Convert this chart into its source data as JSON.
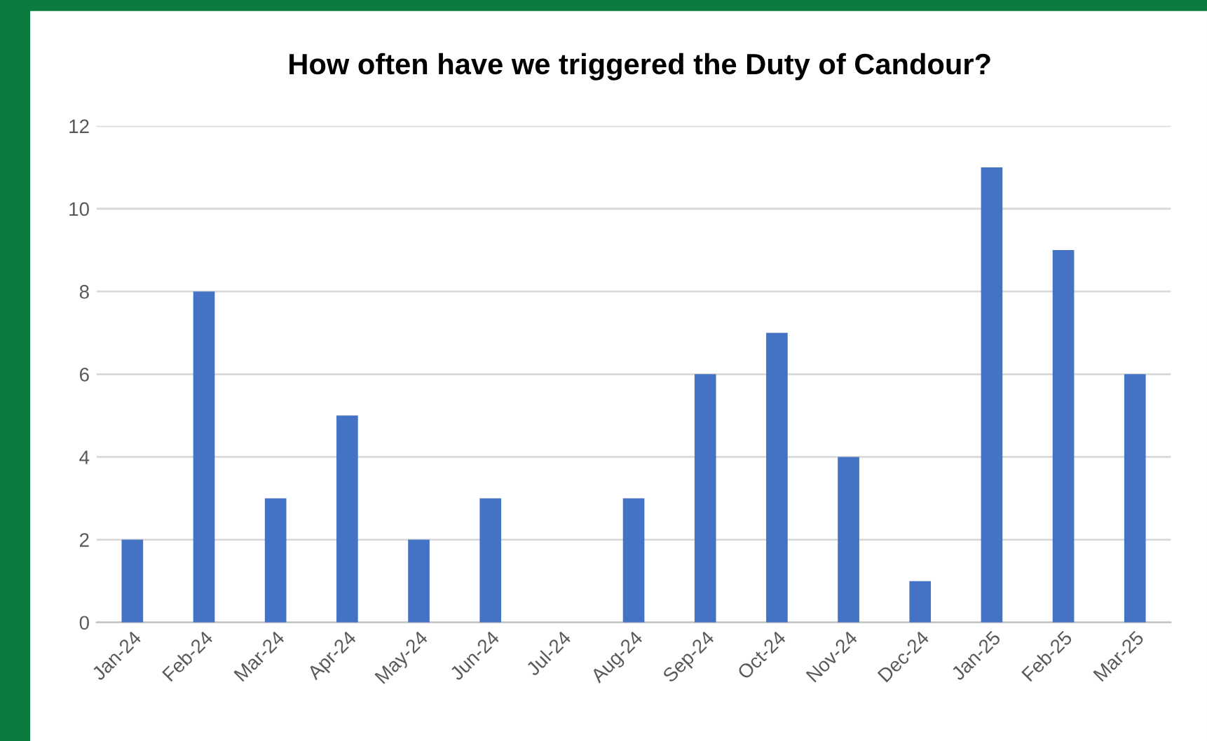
{
  "chart_data": {
    "type": "bar",
    "title": "How often have we triggered the Duty of Candour?",
    "categories": [
      "Jan-24",
      "Feb-24",
      "Mar-24",
      "Apr-24",
      "May-24",
      "Jun-24",
      "Jul-24",
      "Aug-24",
      "Sep-24",
      "Oct-24",
      "Nov-24",
      "Dec-24",
      "Jan-25",
      "Feb-25",
      "Mar-25"
    ],
    "values": [
      2,
      8,
      3,
      5,
      2,
      3,
      0,
      3,
      6,
      7,
      4,
      1,
      11,
      9,
      6
    ],
    "color": "#4472c4",
    "ylim": [
      0,
      12
    ],
    "yticks": [
      0,
      2,
      4,
      6,
      8,
      10,
      12
    ],
    "grid": "y"
  }
}
